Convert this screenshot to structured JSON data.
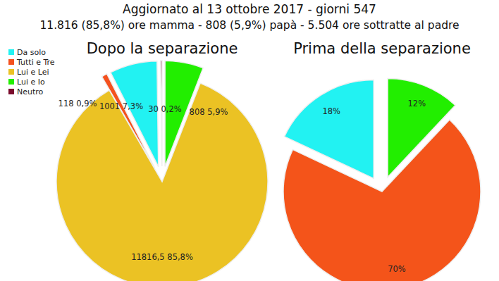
{
  "header": {
    "title": "Aggiornato al 13 ottobre 2017 - giorni 547",
    "subtitle": "11.816 (85,8%) ore mamma - 808 (5,9%) papà - 5.504 ore sottratte al padre"
  },
  "chart_data": [
    {
      "type": "pie",
      "title": "Dopo la separazione",
      "categories": [
        "Tutti e Tre",
        "Da solo",
        "Neutro",
        "Lui e Io",
        "Lui e Lei"
      ],
      "values": [
        118,
        1001,
        30,
        808,
        11816.5
      ],
      "value_labels": [
        "118 0,9%",
        "1001 7,3%",
        "30 0,2%",
        "808 5,9%",
        "11816,5 85,8%"
      ],
      "colors": [
        "#f4511e",
        "#22f2f2",
        "#7a0b2c",
        "#22ee00",
        "#ebc224"
      ],
      "data_labels": true,
      "legend": "upper left"
    },
    {
      "type": "pie",
      "title": "Prima della separazione",
      "categories": [
        "Da solo",
        "Lui e Io",
        "Tutti e Tre"
      ],
      "values": [
        18,
        12,
        70
      ],
      "value_labels": [
        "18%",
        "12%",
        "70%"
      ],
      "colors": [
        "#22f2f2",
        "#22ee00",
        "#f4541a"
      ],
      "data_labels": true
    }
  ]
}
